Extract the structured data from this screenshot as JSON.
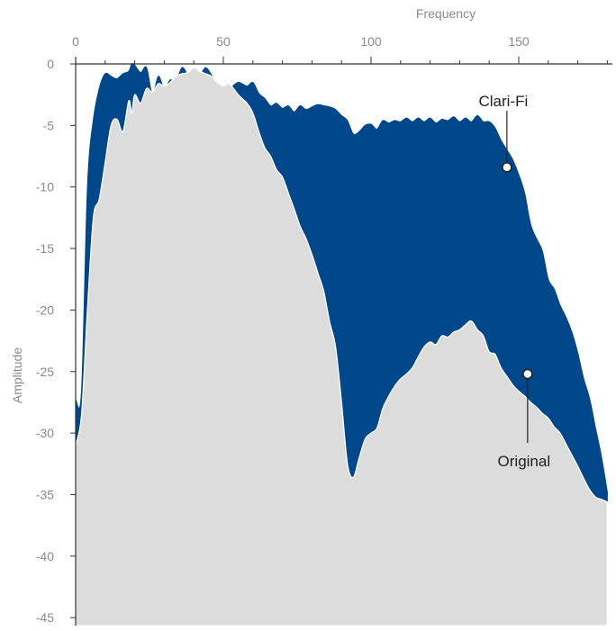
{
  "chart_data": {
    "type": "area",
    "xlabel": "Frequency",
    "ylabel": "Amplitude",
    "xlim": [
      0,
      180
    ],
    "ylim": [
      -45,
      0
    ],
    "x_ticks": [
      0,
      50,
      100,
      150
    ],
    "y_ticks": [
      0,
      -5,
      -10,
      -15,
      -20,
      -25,
      -30,
      -35,
      -40,
      -45
    ],
    "x_axis_position": "top",
    "grid": false,
    "series": [
      {
        "name": "Clari-Fi",
        "color": "#00478b",
        "x": [
          0,
          2,
          4,
          6,
          8,
          10,
          12,
          14,
          16,
          18,
          19,
          20,
          22,
          24,
          26,
          28,
          30,
          32,
          34,
          36,
          38,
          40,
          42,
          44,
          46,
          48,
          50,
          52,
          55,
          58,
          60,
          62,
          64,
          66,
          68,
          70,
          72,
          74,
          76,
          78,
          80,
          82,
          84,
          86,
          88,
          90,
          92,
          94,
          96,
          98,
          100,
          102,
          104,
          106,
          108,
          110,
          112,
          114,
          116,
          118,
          120,
          122,
          124,
          126,
          128,
          130,
          132,
          134,
          136,
          138,
          140,
          142,
          144,
          146,
          148,
          150,
          152,
          154,
          156,
          158,
          160,
          162,
          164,
          166,
          168,
          170,
          172,
          174,
          176,
          178,
          180
        ],
        "values": [
          -27.3,
          -26.5,
          -10.0,
          -4.5,
          -2.0,
          -0.8,
          -1.0,
          -1.2,
          -0.8,
          -0.6,
          0.0,
          -0.1,
          -0.7,
          -0.3,
          -2.5,
          -1.0,
          -2.0,
          -1.3,
          -1.4,
          -0.3,
          -0.8,
          -0.3,
          -0.9,
          -0.3,
          -0.9,
          -1.7,
          -1.8,
          -2.0,
          -1.5,
          -1.8,
          -1.5,
          -2.4,
          -2.8,
          -3.4,
          -3.2,
          -3.6,
          -3.4,
          -3.9,
          -3.4,
          -3.7,
          -3.5,
          -3.3,
          -3.4,
          -3.5,
          -3.7,
          -4.2,
          -4.6,
          -5.7,
          -5.5,
          -5.0,
          -4.9,
          -5.3,
          -4.6,
          -4.8,
          -4.6,
          -4.7,
          -4.4,
          -4.7,
          -4.4,
          -4.7,
          -4.4,
          -4.8,
          -4.5,
          -4.6,
          -4.3,
          -4.7,
          -4.4,
          -4.7,
          -4.2,
          -4.7,
          -4.7,
          -5.2,
          -6.2,
          -7.0,
          -7.8,
          -9.0,
          -10.5,
          -13.0,
          -14.2,
          -15.2,
          -17.5,
          -18.3,
          -19.6,
          -20.6,
          -21.8,
          -23.5,
          -25.6,
          -27.2,
          -29.6,
          -31.9,
          -34.8
        ]
      },
      {
        "name": "Original",
        "color": "#dcdcdc",
        "x": [
          0,
          2,
          4,
          6,
          8,
          10,
          12,
          14,
          16,
          18,
          19,
          20,
          22,
          24,
          26,
          28,
          30,
          32,
          34,
          36,
          38,
          40,
          42,
          44,
          46,
          48,
          50,
          52,
          55,
          58,
          60,
          62,
          64,
          66,
          68,
          70,
          72,
          74,
          76,
          78,
          80,
          82,
          84,
          86,
          88,
          90,
          92,
          94,
          96,
          98,
          100,
          102,
          104,
          106,
          108,
          110,
          112,
          114,
          116,
          118,
          120,
          122,
          124,
          126,
          128,
          130,
          132,
          134,
          136,
          138,
          140,
          142,
          144,
          146,
          148,
          150,
          152,
          154,
          156,
          158,
          160,
          162,
          164,
          166,
          168,
          170,
          172,
          174,
          176,
          178,
          180
        ],
        "values": [
          -31.0,
          -28.5,
          -20.0,
          -12.5,
          -11.0,
          -8.0,
          -5.0,
          -4.5,
          -5.5,
          -3.0,
          -4.0,
          -2.5,
          -3.2,
          -2.0,
          -2.3,
          -1.6,
          -1.8,
          -1.5,
          -1.0,
          -0.8,
          -0.7,
          -0.3,
          -0.6,
          -0.8,
          -1.0,
          -1.5,
          -1.8,
          -1.6,
          -2.5,
          -3.2,
          -4.0,
          -5.5,
          -6.8,
          -7.5,
          -8.6,
          -9.2,
          -10.5,
          -11.8,
          -13.2,
          -14.2,
          -15.5,
          -17.0,
          -18.5,
          -21.0,
          -23.0,
          -27.5,
          -32.5,
          -33.6,
          -32.0,
          -30.5,
          -30.0,
          -29.6,
          -28.0,
          -27.0,
          -26.2,
          -25.6,
          -25.2,
          -24.7,
          -23.8,
          -23.0,
          -22.6,
          -22.8,
          -22.1,
          -22.2,
          -21.8,
          -21.6,
          -21.2,
          -20.9,
          -21.6,
          -22.1,
          -23.4,
          -23.6,
          -24.7,
          -25.4,
          -26.1,
          -26.6,
          -27.0,
          -27.5,
          -27.9,
          -28.4,
          -28.8,
          -29.5,
          -30.0,
          -30.9,
          -31.8,
          -32.7,
          -33.7,
          -34.6,
          -35.2,
          -35.4,
          -35.6
        ]
      }
    ],
    "annotations": [
      {
        "label": "Clari-Fi",
        "series": "Clari-Fi",
        "x": 146,
        "y": -8.4
      },
      {
        "label": "Original",
        "series": "Original",
        "x": 153,
        "y": -25.2
      }
    ]
  }
}
